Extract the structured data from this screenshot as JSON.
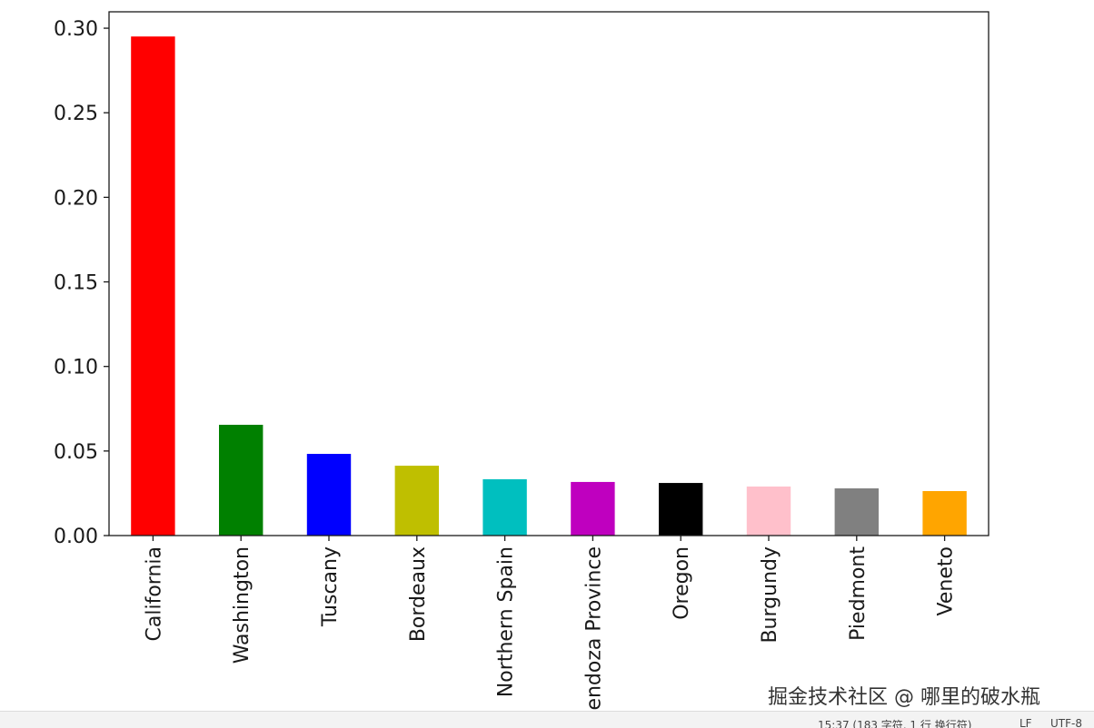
{
  "chart_data": {
    "type": "bar",
    "categories": [
      "California",
      "Washington",
      "Tuscany",
      "Bordeaux",
      "Northern Spain",
      "Mendoza Province",
      "Oregon",
      "Burgundy",
      "Piedmont",
      "Veneto"
    ],
    "values": [
      0.2951,
      0.0655,
      0.0483,
      0.0413,
      0.0333,
      0.0317,
      0.0311,
      0.029,
      0.0279,
      0.0263
    ],
    "colors": [
      "#ff0000",
      "#008000",
      "#0000ff",
      "#bfbf00",
      "#00bfbf",
      "#bf00bf",
      "#000000",
      "#ffc0cb",
      "#808080",
      "#ffa500"
    ],
    "ylim": [
      0,
      0.3097
    ],
    "yticks": [
      {
        "value": 0,
        "label": "0.00"
      },
      {
        "value": 0.05,
        "label": "0.05"
      },
      {
        "value": 0.1,
        "label": "0.10"
      },
      {
        "value": 0.15,
        "label": "0.15"
      },
      {
        "value": 0.2,
        "label": "0.20"
      },
      {
        "value": 0.25,
        "label": "0.25"
      },
      {
        "value": 0.3,
        "label": "0.30"
      }
    ],
    "grid": false
  },
  "watermark": "掘金技术社区 @ 哪里的破水瓶",
  "status_bar": {
    "position": "15:37 (183 字符, 1 行 换行符)",
    "line_ending": "LF",
    "encoding": "UTF-8"
  }
}
